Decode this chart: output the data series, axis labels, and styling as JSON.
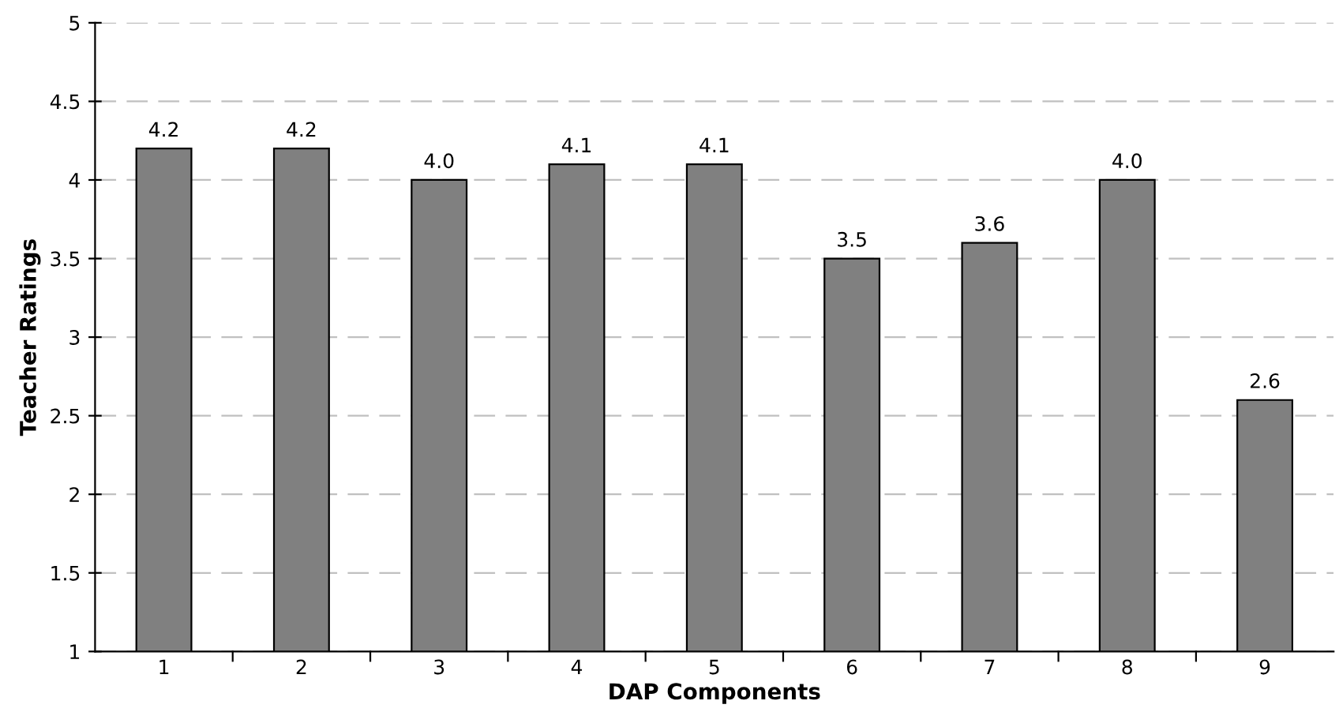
{
  "chart_data": {
    "type": "bar",
    "xlabel": "DAP Components",
    "ylabel": "Teacher Ratings",
    "categories": [
      "1",
      "2",
      "3",
      "4",
      "5",
      "6",
      "7",
      "8",
      "9"
    ],
    "values": [
      4.2,
      4.2,
      4.0,
      4.1,
      4.1,
      3.5,
      3.6,
      4.0,
      2.6
    ],
    "value_labels": [
      "4.2",
      "4.2",
      "4.0",
      "4.1",
      "4.1",
      "3.5",
      "3.6",
      "4.0",
      "2.6"
    ],
    "color": "#808080",
    "ylim": [
      1,
      5
    ],
    "yticks": [
      1,
      1.5,
      2,
      2.5,
      3,
      3.5,
      4,
      4.5,
      5
    ],
    "grid": "y",
    "line_style": "dashed"
  }
}
